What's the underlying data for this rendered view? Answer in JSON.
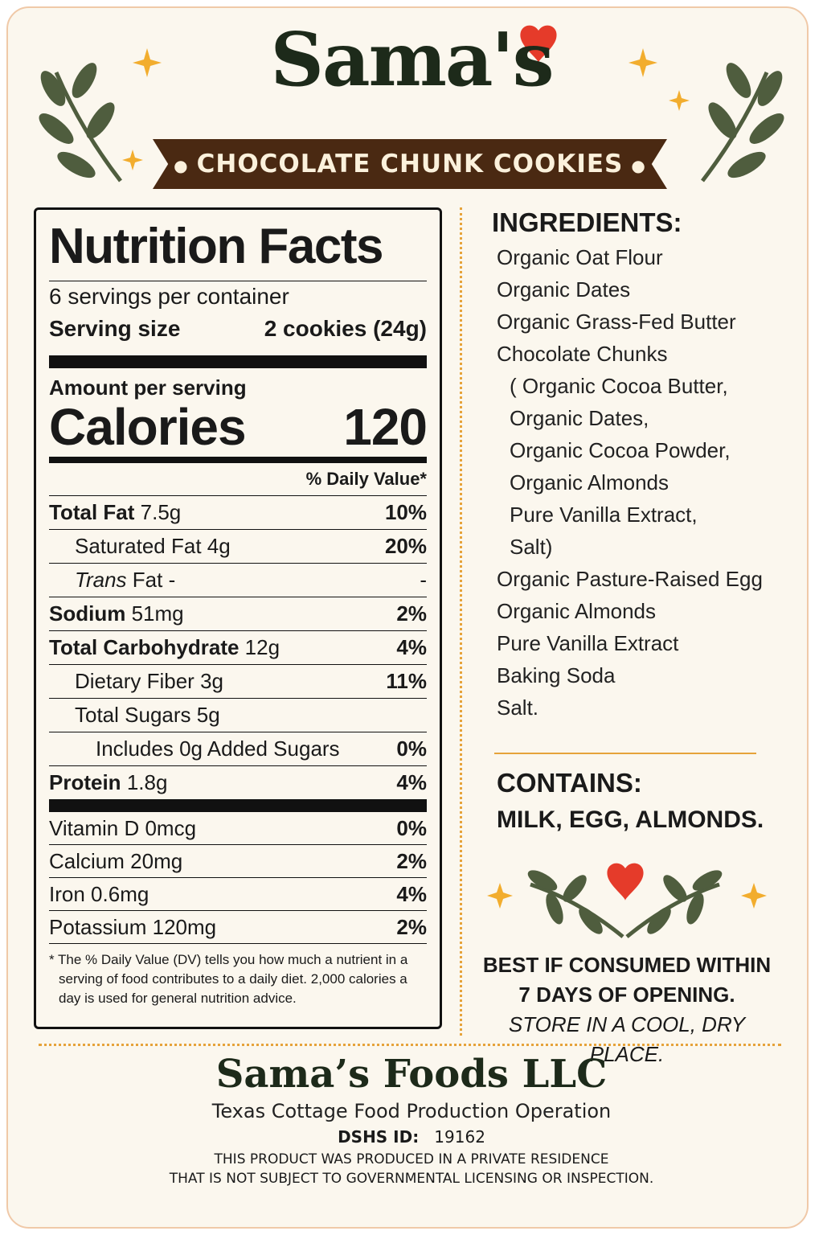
{
  "header": {
    "brand": "Sama's",
    "product": "CHOCOLATE CHUNK COOKIES"
  },
  "nutrition": {
    "title": "Nutrition Facts",
    "servings": "6 servings per container",
    "serving_size_label": "Serving size",
    "serving_size": "2 cookies (24g)",
    "amount_label": "Amount per serving",
    "calories_label": "Calories",
    "calories": 120,
    "dv_header": "% Daily Value*",
    "rows": [
      {
        "name": "Total Fat",
        "amount": "7.5g",
        "dv": "10%"
      },
      {
        "name": "Saturated Fat",
        "amount": "4g",
        "dv": "20%"
      },
      {
        "name": "Trans",
        "name2": "Fat",
        "amount": "-",
        "dv": "-"
      },
      {
        "name": "Sodium",
        "amount": "51mg",
        "dv": "2%"
      },
      {
        "name": "Total Carbohydrate",
        "amount": "12g",
        "dv": "4%"
      },
      {
        "name": "Dietary Fiber",
        "amount": "3g",
        "dv": "11%"
      },
      {
        "name": "Total Sugars",
        "amount": "5g"
      },
      {
        "name": "Includes 0g Added Sugars",
        "dv": "0%"
      },
      {
        "name": "Protein",
        "amount": "1.8g",
        "dv": "4%"
      }
    ],
    "vitamins": [
      {
        "name": "Vitamin D",
        "amount": "0mcg",
        "dv": "0%"
      },
      {
        "name": "Calcium",
        "amount": "20mg",
        "dv": "2%"
      },
      {
        "name": "Iron",
        "amount": "0.6mg",
        "dv": "4%"
      },
      {
        "name": "Potassium",
        "amount": "120mg",
        "dv": "2%"
      }
    ],
    "footnote": "* The % Daily Value (DV) tells you how much a nutrient in a serving of food contributes to a daily diet. 2,000 calories a day is used for general nutrition advice."
  },
  "ingredients": {
    "title": "INGREDIENTS:",
    "items_before": [
      "Organic Oat Flour",
      "Organic Dates",
      "Organic Grass-Fed Butter",
      "Chocolate Chunks"
    ],
    "sub_items": [
      "( Organic Cocoa Butter,",
      "Organic Dates,",
      "Organic Cocoa Powder,",
      "Organic Almonds",
      "Pure Vanilla Extract,",
      "Salt)"
    ],
    "items_after": [
      "Organic Pasture-Raised Egg",
      "Organic Almonds",
      "Pure Vanilla Extract",
      "Baking Soda",
      "Salt."
    ]
  },
  "contains": {
    "title": "CONTAINS:",
    "text": "MILK, EGG, ALMONDS."
  },
  "storage": {
    "line1": "BEST IF CONSUMED WITHIN",
    "line2": "7 DAYS OF OPENING.",
    "line3": "STORE IN A COOL, DRY PLACE."
  },
  "footer": {
    "company": "Sama’s Foods LLC",
    "operation": "Texas Cottage Food Production Operation",
    "id_label": "DSHS ID:",
    "id": 19162,
    "disclaimer1": "THIS PRODUCT WAS PRODUCED IN A PRIVATE RESIDENCE",
    "disclaimer2": "THAT IS NOT SUBJECT TO GOVERNMENTAL LICENSING OR INSPECTION."
  }
}
